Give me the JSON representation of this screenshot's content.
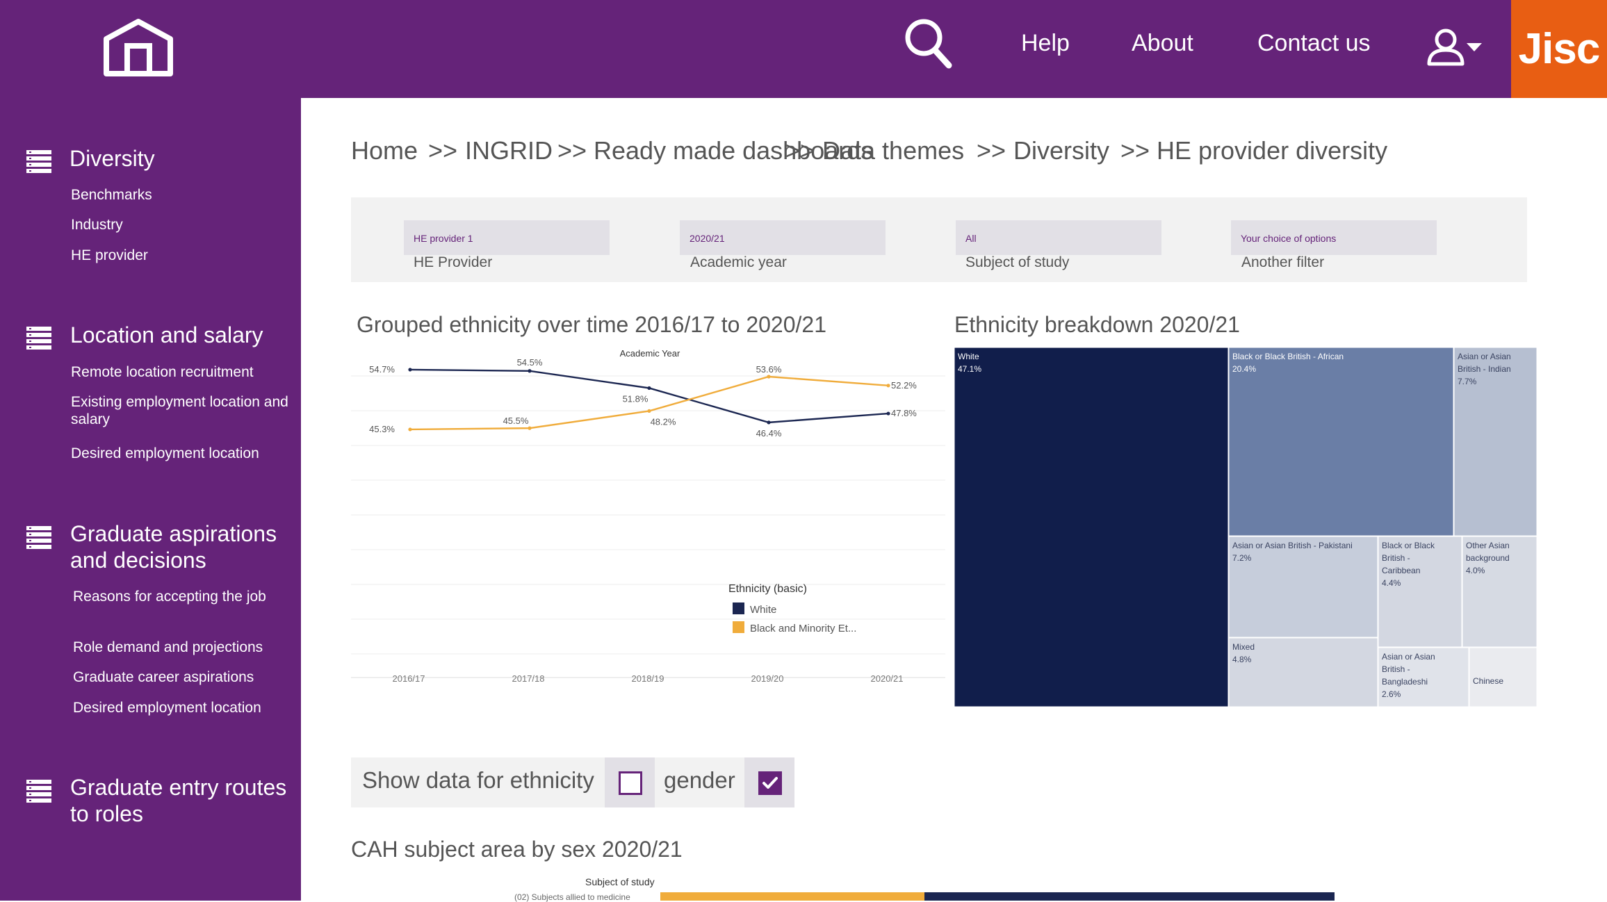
{
  "header": {
    "nav": [
      "Help",
      "About",
      "Contact us"
    ],
    "logo_text": "Jisc",
    "icons": [
      "home-icon",
      "search-icon",
      "user-icon"
    ]
  },
  "sidebar": {
    "sections": [
      {
        "title": "Diversity",
        "items": [
          "Benchmarks",
          "Industry",
          "HE provider"
        ]
      },
      {
        "title": "Location and salary",
        "items": [
          "Remote location recruitment",
          "Existing employment location and salary",
          "Desired employment location"
        ]
      },
      {
        "title": "Graduate aspirations and decisions",
        "items": [
          "Reasons for accepting the job",
          "Role demand and projections",
          "Graduate career aspirations",
          "Desired employment location"
        ]
      },
      {
        "title": "Graduate entry routes to roles",
        "items": []
      }
    ]
  },
  "breadcrumb": [
    "Home",
    ">>",
    "INGRID",
    ">>",
    "Ready made dashboards",
    ">>",
    "Data themes",
    ">>",
    "Diversity",
    ">>",
    "HE provider diversity"
  ],
  "filters": [
    {
      "value": "HE provider 1",
      "label": "HE Provider"
    },
    {
      "value": "2020/21",
      "label": "Academic year"
    },
    {
      "value": "All",
      "label": "Subject of study"
    },
    {
      "value": "Your choice of options",
      "label": "Another filter"
    }
  ],
  "line_chart": {
    "heading": "Grouped ethnicity over time 2016/17 to 2020/21",
    "legend_title": "Ethnicity (basic)"
  },
  "treemap": {
    "heading": "Ethnicity breakdown 2020/21"
  },
  "toggle": {
    "label": "Show data for ethnicity",
    "gender_label": "gender",
    "ethnicity_checked": false,
    "gender_checked": true
  },
  "cah": {
    "heading": "CAH subject area by sex 2020/21",
    "axis_title": "Subject of study",
    "first_row_label": "(02) Subjects allied to medicine"
  },
  "chart_data": [
    {
      "type": "line",
      "title": "Academic Year",
      "categories": [
        "2016/17",
        "2017/18",
        "2018/19",
        "2019/20",
        "2020/21"
      ],
      "series": [
        {
          "name": "White",
          "color": "#1b2651",
          "values": [
            54.7,
            54.5,
            51.8,
            46.4,
            47.8
          ],
          "labels": [
            "54.7%",
            "54.5%",
            "51.8%",
            "46.4%",
            "47.8%"
          ]
        },
        {
          "name": "Black and Minority Et...",
          "color": "#f0ac3b",
          "values": [
            45.3,
            45.5,
            48.2,
            53.6,
            52.2
          ],
          "labels": [
            "45.3%",
            "45.5%",
            "48.2%",
            "53.6%",
            "52.2%"
          ]
        }
      ],
      "legend": "bottom-right",
      "grid": true
    },
    {
      "type": "treemap",
      "items": [
        {
          "name": "White",
          "value": 47.1,
          "label": "47.1%",
          "color": "#111e4b"
        },
        {
          "name": "Black or Black British - African",
          "value": 20.4,
          "label": "20.4%",
          "color": "#6a7ea6"
        },
        {
          "name": "Asian or Asian British - Indian",
          "value": 7.7,
          "label": "7.7%",
          "color": "#b6bfd1"
        },
        {
          "name": "Asian or Asian British - Pakistani",
          "value": 7.2,
          "label": "7.2%",
          "color": "#c6cddb"
        },
        {
          "name": "Black or Black British - Caribbean",
          "value": 4.4,
          "label": "4.4%",
          "color": "#d3d7e1"
        },
        {
          "name": "Other Asian background",
          "value": 4.0,
          "label": "4.0%",
          "color": "#d6dae3"
        },
        {
          "name": "Mixed",
          "value": 4.8,
          "label": "4.8%",
          "color": "#d3d7e1"
        },
        {
          "name": "Asian or Asian British - Bangladeshi",
          "value": 2.6,
          "label": "2.6%",
          "color": "#e0e3ea"
        },
        {
          "name": "Chinese",
          "value": null,
          "label": "",
          "color": "#eaebef"
        }
      ]
    }
  ]
}
